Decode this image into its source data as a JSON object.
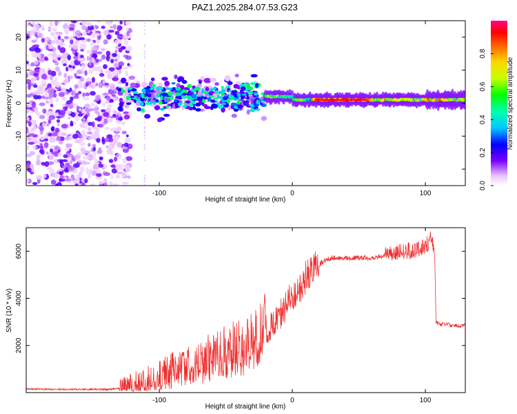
{
  "title": "PAZ1.2025.284.07.53.G23",
  "chart_data": [
    {
      "type": "heatmap",
      "name": "spectrogram",
      "xlabel": "Height of straight line (km)",
      "ylabel": "Frequency (Hz)",
      "xlim": [
        -200,
        130
      ],
      "ylim": [
        -25,
        25
      ],
      "x_ticks": [
        "-100",
        "0",
        "100"
      ],
      "y_ticks": [
        "-20",
        "-10",
        "0",
        "10",
        "20"
      ],
      "x_tick_values": [
        -100,
        0,
        100
      ],
      "y_tick_values": [
        -20,
        -10,
        0,
        10,
        20
      ],
      "colorbar": {
        "label": "Normalized spectral amplitude",
        "range": [
          0,
          1
        ],
        "ticks": [
          "0.0",
          "0.2",
          "0.4",
          "0.6",
          "0.8"
        ],
        "tick_values": [
          0.0,
          0.2,
          0.4,
          0.6,
          0.8
        ]
      },
      "regions": [
        {
          "x_range": [
            -200,
            -130
          ],
          "description": "diffuse low amplitude noise",
          "amplitude": 0.1
        },
        {
          "x_range": [
            -130,
            -20
          ],
          "center_freq": 2,
          "spread_hz": 8,
          "amplitude": 0.3
        },
        {
          "x_range": [
            -20,
            130
          ],
          "center_freq": 1,
          "spread_hz": 2,
          "amplitude": 0.9
        }
      ]
    },
    {
      "type": "line",
      "name": "snr",
      "xlabel": "Height of straight line (km)",
      "ylabel": "SNR (10 * v/v)",
      "xlim": [
        -200,
        130
      ],
      "ylim": [
        0,
        7000
      ],
      "x_ticks": [
        "-100",
        "0",
        "100"
      ],
      "y_ticks": [
        "2000",
        "4000",
        "6000"
      ],
      "x_tick_values": [
        -100,
        0,
        100
      ],
      "y_tick_values": [
        2000,
        4000,
        6000
      ],
      "color": "#ee3030",
      "x": [
        -200,
        -180,
        -160,
        -140,
        -125,
        -115,
        -105,
        -100,
        -90,
        -80,
        -70,
        -60,
        -50,
        -40,
        -30,
        -25,
        -20,
        -15,
        -10,
        -5,
        0,
        5,
        10,
        15,
        20,
        25,
        30,
        40,
        50,
        60,
        70,
        80,
        90,
        100,
        105,
        107,
        108,
        110,
        115,
        120,
        130
      ],
      "y": [
        150,
        140,
        140,
        140,
        180,
        300,
        450,
        600,
        750,
        900,
        1050,
        1250,
        1400,
        1600,
        1900,
        2200,
        2500,
        2800,
        3100,
        3500,
        3900,
        4300,
        4700,
        5100,
        5400,
        5600,
        5700,
        5700,
        5700,
        5700,
        5800,
        5900,
        5950,
        6100,
        6500,
        5800,
        3000,
        2900,
        2900,
        2850,
        2850
      ]
    }
  ]
}
